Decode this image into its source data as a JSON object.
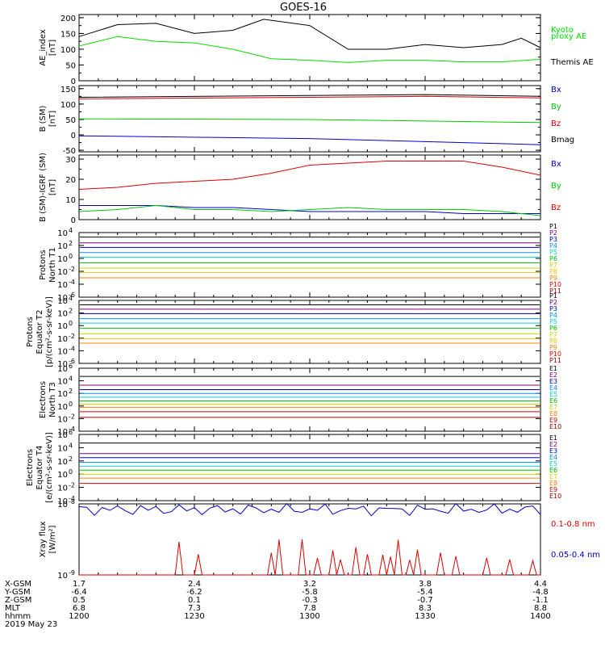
{
  "title": "GOES-16",
  "panels": [
    {
      "id": "ae",
      "ylabel_lines": [
        "AE_index",
        "[nT]"
      ],
      "ticks": [
        {
          "label": "200",
          "v": 200
        },
        {
          "label": "150",
          "v": 150
        },
        {
          "label": "100",
          "v": 100
        },
        {
          "label": "50",
          "v": 50
        },
        {
          "label": "0",
          "v": 0
        }
      ],
      "ylim": [
        0,
        210
      ],
      "log": false,
      "legend": [
        {
          "text": "Kyoto",
          "color": "#00e000"
        },
        {
          "text": "proxy AE",
          "color": "#00e000"
        },
        {
          "text": "Themis AE",
          "color": "#000000"
        }
      ]
    },
    {
      "id": "bsm",
      "ylabel_lines": [
        "B (SM)",
        "[nT]"
      ],
      "ticks": [
        {
          "label": "150",
          "v": 150
        },
        {
          "label": "100",
          "v": 100
        },
        {
          "label": "50",
          "v": 50
        },
        {
          "label": "0",
          "v": 0
        },
        {
          "label": "-50",
          "v": -50
        }
      ],
      "ylim": [
        -55,
        160
      ],
      "log": false,
      "legend": [
        {
          "text": "Bx",
          "color": "#0000cc"
        },
        {
          "text": "By",
          "color": "#00cc00"
        },
        {
          "text": "Bz",
          "color": "#dd0000"
        },
        {
          "text": "Bmag",
          "color": "#000000"
        }
      ]
    },
    {
      "id": "bigrf",
      "ylabel_lines": [
        "B (SM)-IGRF (SM)",
        "[nT]"
      ],
      "ticks": [
        {
          "label": "30",
          "v": 30
        },
        {
          "label": "20",
          "v": 20
        },
        {
          "label": "10",
          "v": 10
        },
        {
          "label": "0",
          "v": 0
        }
      ],
      "ylim": [
        0,
        32
      ],
      "log": false,
      "legend": [
        {
          "text": "Bx",
          "color": "#0000cc"
        },
        {
          "text": "By",
          "color": "#00cc00"
        },
        {
          "text": "Bz",
          "color": "#dd0000"
        }
      ]
    },
    {
      "id": "pn",
      "ylabel_lines": [
        "Protons",
        "North T1"
      ],
      "ticks": [
        {
          "label": "10",
          "sup": "4",
          "v": 4
        },
        {
          "label": "10",
          "sup": "2",
          "v": 2
        },
        {
          "label": "10",
          "sup": "0",
          "v": 0
        },
        {
          "label": "10",
          "sup": "-2",
          "v": -2
        },
        {
          "label": "10",
          "sup": "-4",
          "v": -4
        },
        {
          "label": "10",
          "sup": "-6",
          "v": -6
        }
      ],
      "ylim": [
        -6,
        4
      ],
      "log": true,
      "legend": [
        {
          "text": "P1",
          "color": "#000000"
        },
        {
          "text": "P2",
          "color": "#800080"
        },
        {
          "text": "P3",
          "color": "#0000cc"
        },
        {
          "text": "P4",
          "color": "#0090ff"
        },
        {
          "text": "P5",
          "color": "#00d8d8"
        },
        {
          "text": "P6",
          "color": "#00c000"
        },
        {
          "text": "P7",
          "color": "#c8d800"
        },
        {
          "text": "P8",
          "color": "#e8c800"
        },
        {
          "text": "P9",
          "color": "#ff8000"
        },
        {
          "text": "P10",
          "color": "#e00000"
        },
        {
          "text": "P11",
          "color": "#a00000"
        }
      ]
    },
    {
      "id": "pe",
      "ylabel_lines": [
        "Protons",
        "Equator T2",
        "[p/(cm²-s-sr-keV)]"
      ],
      "ticks": [
        {
          "label": "10",
          "sup": "4",
          "v": 4
        },
        {
          "label": "10",
          "sup": "2",
          "v": 2
        },
        {
          "label": "10",
          "sup": "0",
          "v": 0
        },
        {
          "label": "10",
          "sup": "-2",
          "v": -2
        },
        {
          "label": "10",
          "sup": "-4",
          "v": -4
        },
        {
          "label": "10",
          "sup": "-6",
          "v": -6
        }
      ],
      "ylim": [
        -6,
        4
      ],
      "log": true,
      "legend": [
        {
          "text": "P1",
          "color": "#000000"
        },
        {
          "text": "P2",
          "color": "#800080"
        },
        {
          "text": "P3",
          "color": "#0000cc"
        },
        {
          "text": "P4",
          "color": "#0090ff"
        },
        {
          "text": "P5",
          "color": "#00d8d8"
        },
        {
          "text": "P6",
          "color": "#00c000"
        },
        {
          "text": "P7",
          "color": "#c8d800"
        },
        {
          "text": "P8",
          "color": "#e8c800"
        },
        {
          "text": "P9",
          "color": "#ff8000"
        },
        {
          "text": "P10",
          "color": "#e00000"
        },
        {
          "text": "P11",
          "color": "#a00000"
        }
      ]
    },
    {
      "id": "en",
      "ylabel_lines": [
        "Electrons",
        "North T3"
      ],
      "ticks": [
        {
          "label": "10",
          "sup": "6",
          "v": 6
        },
        {
          "label": "10",
          "sup": "4",
          "v": 4
        },
        {
          "label": "10",
          "sup": "2",
          "v": 2
        },
        {
          "label": "10",
          "sup": "0",
          "v": 0
        },
        {
          "label": "10",
          "sup": "-2",
          "v": -2
        },
        {
          "label": "10",
          "sup": "-4",
          "v": -4
        }
      ],
      "ylim": [
        -4,
        6
      ],
      "log": true,
      "legend": [
        {
          "text": "E1",
          "color": "#000000"
        },
        {
          "text": "E2",
          "color": "#800080"
        },
        {
          "text": "E3",
          "color": "#0000cc"
        },
        {
          "text": "E4",
          "color": "#0090ff"
        },
        {
          "text": "E5",
          "color": "#00d8d8"
        },
        {
          "text": "E6",
          "color": "#00c000"
        },
        {
          "text": "E7",
          "color": "#c8d800"
        },
        {
          "text": "E8",
          "color": "#ff8000"
        },
        {
          "text": "E9",
          "color": "#e00000"
        },
        {
          "text": "E10",
          "color": "#a00000"
        }
      ]
    },
    {
      "id": "ee",
      "ylabel_lines": [
        "Electrons",
        "Equator T4",
        "[e/(cm²-s-sr-keV)]"
      ],
      "ticks": [
        {
          "label": "10",
          "sup": "6",
          "v": 6
        },
        {
          "label": "10",
          "sup": "4",
          "v": 4
        },
        {
          "label": "10",
          "sup": "2",
          "v": 2
        },
        {
          "label": "10",
          "sup": "0",
          "v": 0
        },
        {
          "label": "10",
          "sup": "-2",
          "v": -2
        },
        {
          "label": "10",
          "sup": "-4",
          "v": -4
        }
      ],
      "ylim": [
        -4,
        6
      ],
      "log": true,
      "legend": [
        {
          "text": "E1",
          "color": "#000000"
        },
        {
          "text": "E2",
          "color": "#800080"
        },
        {
          "text": "E3",
          "color": "#0000cc"
        },
        {
          "text": "E4",
          "color": "#0090ff"
        },
        {
          "text": "E5",
          "color": "#00d8d8"
        },
        {
          "text": "E6",
          "color": "#00c000"
        },
        {
          "text": "E7",
          "color": "#c8d800"
        },
        {
          "text": "E8",
          "color": "#ff8000"
        },
        {
          "text": "E9",
          "color": "#e00000"
        },
        {
          "text": "E10",
          "color": "#a00000"
        }
      ]
    },
    {
      "id": "xray",
      "ylabel_lines": [
        "Xray flux",
        "[W/m²]"
      ],
      "ticks": [
        {
          "label": "10",
          "sup": "-8",
          "v": -8
        },
        {
          "label": "10",
          "sup": "-9",
          "v": -9
        }
      ],
      "ylim": [
        -9,
        -8
      ],
      "log": true,
      "legend": [
        {
          "text": "0.1-0.8 nm",
          "color": "#dd0000"
        },
        {
          "text": "0.05-0.4 nm",
          "color": "#0000cc"
        }
      ]
    }
  ],
  "xaxis": {
    "tick_hhmm": [
      "1200",
      "1230",
      "1300",
      "1330",
      "1400"
    ],
    "rows": [
      {
        "name": "X-GSM",
        "values": [
          "1.7",
          "2.4",
          "3.2",
          "3.8",
          "4.4"
        ]
      },
      {
        "name": "Y-GSM",
        "values": [
          "-6.4",
          "-6.2",
          "-5.8",
          "-5.4",
          "-4.8"
        ]
      },
      {
        "name": "Z-GSM",
        "values": [
          "0.5",
          "0.1",
          "-0.3",
          "-0.7",
          "-1.1"
        ]
      },
      {
        "name": "MLT",
        "values": [
          "6.8",
          "7.3",
          "7.8",
          "8.3",
          "8.8"
        ]
      },
      {
        "name": "hhmm",
        "values": [
          "1200",
          "1230",
          "1300",
          "1330",
          "1400"
        ]
      }
    ],
    "date": "2019 May 23"
  },
  "chart_data": {
    "type": "line",
    "title": "GOES-16",
    "x_time_range": [
      "1200",
      "1400"
    ],
    "ae_index": {
      "themis_ae": {
        "name": "Themis AE",
        "t": [
          "1200",
          "1210",
          "1220",
          "1230",
          "1240",
          "1248",
          "1300",
          "1310",
          "1320",
          "1330",
          "1340",
          "1350",
          "1355",
          "1400"
        ],
        "values": [
          140,
          178,
          182,
          150,
          160,
          195,
          175,
          100,
          100,
          115,
          105,
          115,
          135,
          105
        ]
      },
      "kyoto_proxy_ae": {
        "name": "Kyoto proxy AE",
        "t": [
          "1200",
          "1210",
          "1220",
          "1230",
          "1240",
          "1250",
          "1300",
          "1310",
          "1320",
          "1330",
          "1340",
          "1350",
          "1400"
        ],
        "values": [
          110,
          140,
          125,
          120,
          100,
          70,
          65,
          58,
          65,
          65,
          60,
          60,
          68
        ]
      }
    },
    "b_sm": {
      "Bmag": {
        "t": [
          "1200",
          "1300",
          "1330",
          "1400"
        ],
        "values": [
          122,
          128,
          131,
          125
        ]
      },
      "Bz": {
        "t": [
          "1200",
          "1300",
          "1330",
          "1400"
        ],
        "values": [
          117,
          122,
          125,
          120
        ]
      },
      "By": {
        "t": [
          "1200",
          "1300",
          "1330",
          "1400"
        ],
        "values": [
          52,
          50,
          45,
          40
        ]
      },
      "Bx": {
        "t": [
          "1200",
          "1300",
          "1330",
          "1400"
        ],
        "values": [
          -3,
          -12,
          -22,
          -32
        ]
      }
    },
    "b_minus_igrf": {
      "Bz": {
        "t": [
          "1200",
          "1210",
          "1220",
          "1230",
          "1240",
          "1250",
          "1300",
          "1310",
          "1320",
          "1330",
          "1340",
          "1350",
          "1400"
        ],
        "values": [
          15,
          16,
          18,
          19,
          20,
          23,
          27,
          28,
          29,
          29,
          29,
          26,
          22
        ]
      },
      "Bx": {
        "t": [
          "1200",
          "1210",
          "1220",
          "1230",
          "1240",
          "1250",
          "1300",
          "1310",
          "1320",
          "1330",
          "1340",
          "1350",
          "1400"
        ],
        "values": [
          7,
          7,
          7,
          6,
          6,
          5,
          4,
          4,
          4,
          4,
          3,
          3,
          3
        ]
      },
      "By": {
        "t": [
          "1200",
          "1210",
          "1220",
          "1230",
          "1240",
          "1250",
          "1300",
          "1310",
          "1320",
          "1330",
          "1340",
          "1350",
          "1400"
        ],
        "values": [
          4,
          5,
          7,
          5,
          5,
          4,
          5,
          6,
          5,
          5,
          5,
          4,
          2
        ]
      }
    },
    "protons_north_t1_log10": {
      "channels": [
        "P1",
        "P2",
        "P3",
        "P4",
        "P5",
        "P6",
        "P7",
        "P8",
        "P9",
        "P10",
        "P11"
      ],
      "levels": [
        3.3,
        2.4,
        1.7,
        0.9,
        0.2,
        -0.7,
        -1.5,
        -2.2,
        -3.0,
        null,
        null
      ]
    },
    "protons_equator_t2_log10": {
      "channels": [
        "P1",
        "P2",
        "P3",
        "P4",
        "P5",
        "P6",
        "P7",
        "P8",
        "P9",
        "P10",
        "P11"
      ],
      "levels": [
        3.3,
        2.6,
        1.9,
        1.1,
        0.4,
        -0.4,
        -1.3,
        -2.1,
        -2.8,
        null,
        null
      ]
    },
    "electrons_north_t3_log10": {
      "channels": [
        "E1",
        "E2",
        "E3",
        "E4",
        "E5",
        "E6",
        "E7",
        "E8",
        "E9",
        "E10"
      ],
      "levels": [
        4.7,
        3.3,
        2.6,
        2.0,
        1.4,
        0.8,
        0.3,
        -0.2,
        -0.9,
        -1.8
      ]
    },
    "electrons_equator_t4_log10": {
      "channels": [
        "E1",
        "E2",
        "E3",
        "E4",
        "E5",
        "E6",
        "E7",
        "E8",
        "E9",
        "E10"
      ],
      "levels": [
        4.7,
        3.1,
        2.5,
        1.8,
        1.2,
        0.6,
        0.0,
        -0.6,
        -1.4,
        null
      ]
    },
    "xray_flux": {
      "long_0.1-0.8nm": {
        "name": "0.1-0.8 nm",
        "approx_level": "below 1e-9 with spikes to ~2e-9"
      },
      "short_0.05-0.4nm": {
        "name": "0.05-0.4 nm",
        "approx_level": "~8e-9"
      }
    }
  }
}
